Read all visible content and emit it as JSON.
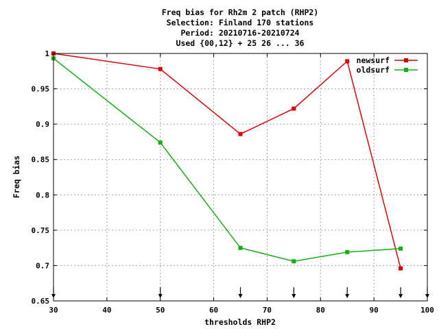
{
  "chart_data": {
    "type": "line",
    "title_lines": [
      "Freq bias  for Rh2m 2 patch (RHP2)",
      "Selection: Finland    170 stations",
      "Period: 20210716-20210724",
      "Used {00,12} + 25 26 ... 36"
    ],
    "xlabel": "thresholds RHP2",
    "ylabel": "Freq bias",
    "xlim": [
      30,
      100
    ],
    "ylim": [
      0.65,
      1.0
    ],
    "x_ticks": [
      30,
      40,
      50,
      60,
      70,
      80,
      90,
      100
    ],
    "x_tick_labels": [
      "30",
      "40",
      "50",
      "60",
      "70",
      "80",
      "90",
      "100"
    ],
    "y_ticks": [
      0.65,
      0.7,
      0.75,
      0.8,
      0.85,
      0.9,
      0.95,
      1.0
    ],
    "y_tick_labels": [
      "0.65",
      "0.7",
      "0.75",
      "0.8",
      "0.85",
      "0.9",
      "0.95",
      "1"
    ],
    "grid": true,
    "legend_position": "top-right",
    "threshold_arrows_x": [
      30,
      50,
      65,
      75,
      85,
      95,
      100
    ],
    "series": [
      {
        "name": "newsurf",
        "color": "#e00000",
        "x": [
          30,
          50,
          65,
          75,
          85,
          95
        ],
        "values": [
          1.0,
          0.978,
          0.886,
          0.922,
          0.989,
          0.696
        ]
      },
      {
        "name": "oldsurf",
        "color": "#10b010",
        "x": [
          30,
          50,
          65,
          75,
          85,
          95
        ],
        "values": [
          0.993,
          0.874,
          0.725,
          0.706,
          0.719,
          0.724
        ]
      }
    ]
  }
}
